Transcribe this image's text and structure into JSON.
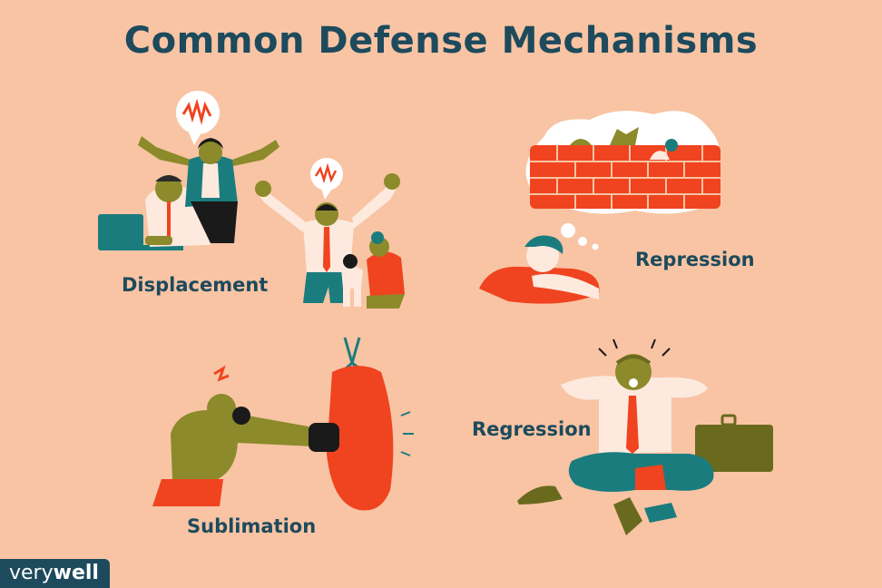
{
  "title": "Common Defense Mechanisms",
  "mechanisms": {
    "displacement": "Displacement",
    "repression": "Repression",
    "regression": "Regression",
    "sublimation": "Sublimation"
  },
  "brand": {
    "part1": "very",
    "part2": "well"
  },
  "colors": {
    "background": "#f8c4a4",
    "heading": "#1d4a5c",
    "accent_red": "#f0431f",
    "skin_olive": "#8c8a2a",
    "teal": "#1b7c7e",
    "shirt": "#fde9de"
  }
}
